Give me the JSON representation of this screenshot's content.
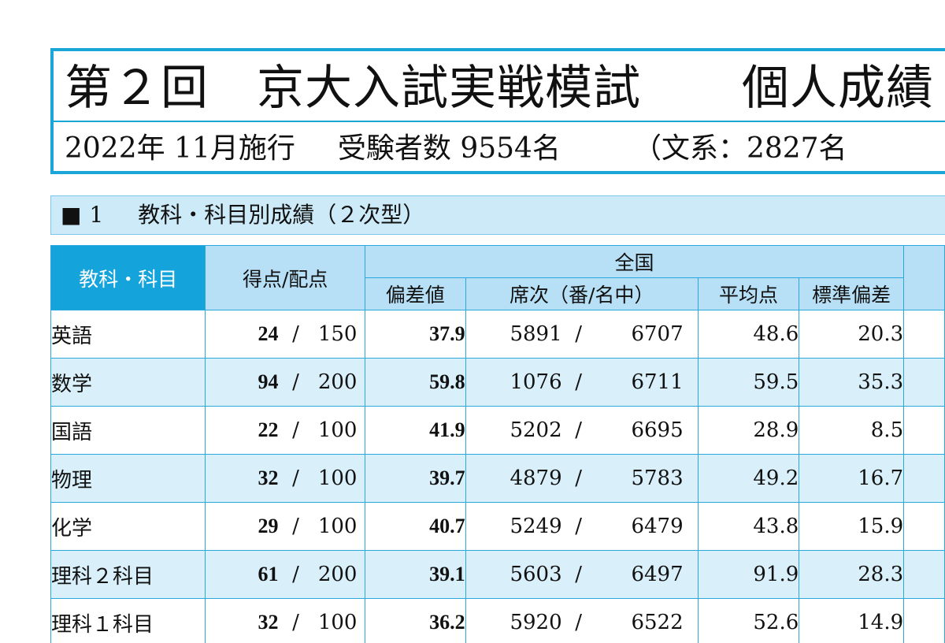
{
  "header": {
    "title_main": "第２回　京大入試実戦模試",
    "title_right": "個人成績",
    "date": "2022年 11月施行",
    "examinees": "受験者数 9554名",
    "split": "（文系：2827名"
  },
  "section": {
    "marker": "■",
    "number": "1",
    "title": "教科・科目別成績（２次型）"
  },
  "table": {
    "headers": {
      "subject": "教科・科目",
      "score": "得点/配点",
      "national": "全国",
      "deviation": "偏差値",
      "rank": "席次（番/名中）",
      "average": "平均点",
      "stdev": "標準偏差"
    },
    "rows": [
      {
        "subject": "英語",
        "score": "24",
        "max": "150",
        "deviation": "37.9",
        "rank": "5891",
        "total": "6707",
        "average": "48.6",
        "stdev": "20.3"
      },
      {
        "subject": "数学",
        "score": "94",
        "max": "200",
        "deviation": "59.8",
        "rank": "1076",
        "total": "6711",
        "average": "59.5",
        "stdev": "35.3"
      },
      {
        "subject": "国語",
        "score": "22",
        "max": "100",
        "deviation": "41.9",
        "rank": "5202",
        "total": "6695",
        "average": "28.9",
        "stdev": "8.5"
      },
      {
        "subject": "物理",
        "score": "32",
        "max": "100",
        "deviation": "39.7",
        "rank": "4879",
        "total": "5783",
        "average": "49.2",
        "stdev": "16.7"
      },
      {
        "subject": "化学",
        "score": "29",
        "max": "100",
        "deviation": "40.7",
        "rank": "5249",
        "total": "6479",
        "average": "43.8",
        "stdev": "15.9"
      },
      {
        "subject": "理科２科目",
        "score": "61",
        "max": "200",
        "deviation": "39.1",
        "rank": "5603",
        "total": "6497",
        "average": "91.9",
        "stdev": "28.3"
      },
      {
        "subject": "理科１科目",
        "score": "32",
        "max": "100",
        "deviation": "36.2",
        "rank": "5920",
        "total": "6522",
        "average": "52.6",
        "stdev": "14.9"
      }
    ],
    "slash": "/"
  },
  "colors": {
    "accent": "#1aa6d9",
    "header_fill": "#b7e0f6",
    "subject_header_fill": "#15a3db",
    "alt_row": "#d9f0fb"
  }
}
